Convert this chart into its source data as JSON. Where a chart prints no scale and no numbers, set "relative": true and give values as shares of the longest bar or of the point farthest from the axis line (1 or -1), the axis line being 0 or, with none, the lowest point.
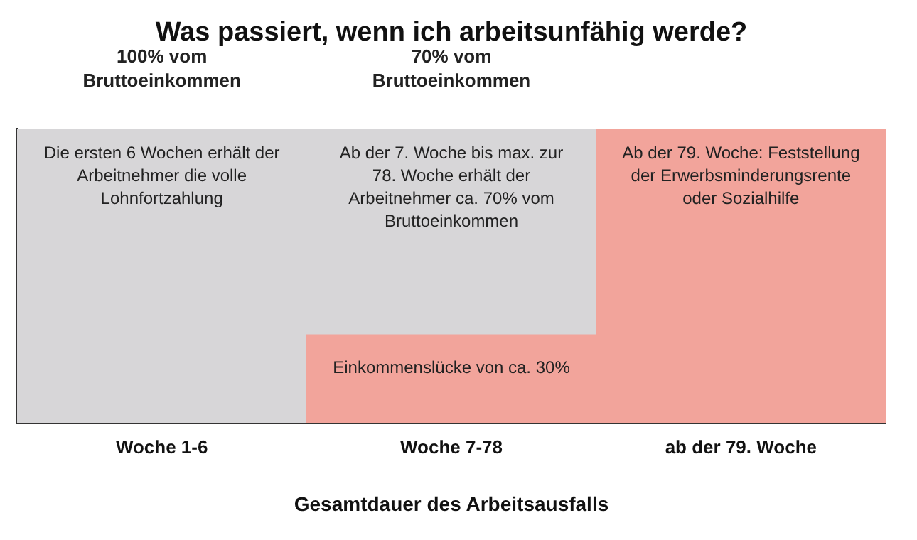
{
  "chart_data": {
    "type": "bar",
    "title": "Was passiert, wenn ich arbeitsunfähig werde?",
    "xlabel": "Gesamtdauer des Arbeitsausfalls",
    "categories": [
      "Woche 1-6",
      "Woche 7-78",
      "ab der 79. Woche"
    ],
    "stacked": true,
    "relative": true,
    "grid": false,
    "legend": false,
    "series": [
      {
        "color": "#f2a49b",
        "values": [
          null,
          0.3,
          1
        ]
      },
      {
        "color": "#d7d6d8",
        "values": [
          1,
          0.7,
          null
        ]
      }
    ],
    "annotations": [
      "100% vom Bruttoeinkommen",
      "70% vom Bruttoeinkommen",
      "Die ersten 6 Wochen erhält der Arbeitnehmer die volle Lohnfortzahlung",
      "Ab der 7. Woche bis max. zur 78. Woche erhält der Arbeitnehmer ca. 70% vom Bruttoeinkommen",
      "Einkommenslücke von ca. 30%",
      "Ab der 79. Woche: Feststellung der Erwerbsminderungsrente oder Sozialhilfe"
    ]
  }
}
